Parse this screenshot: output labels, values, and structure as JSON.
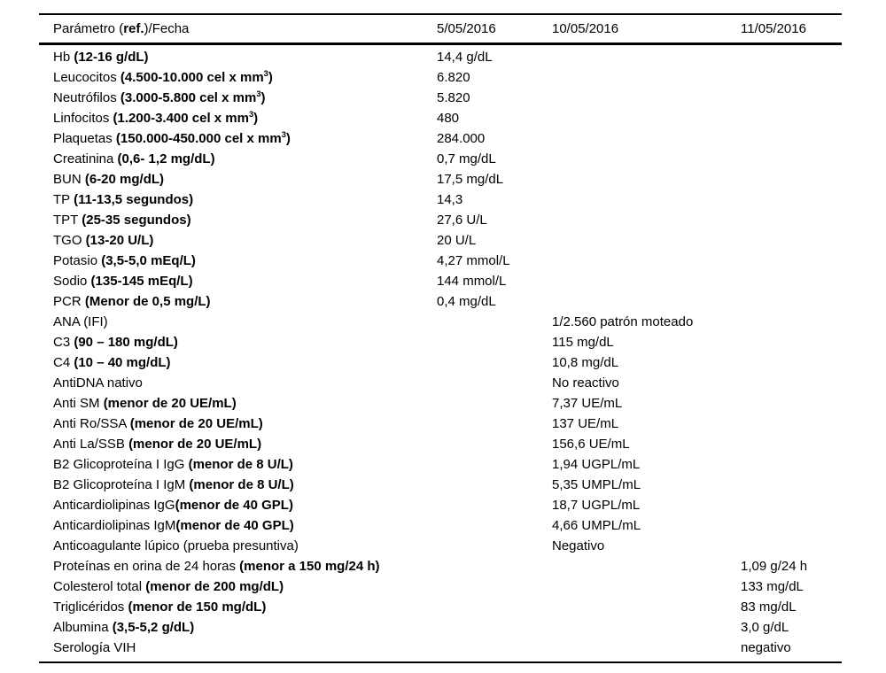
{
  "table": {
    "header": {
      "param_prefix": "Parámetro (",
      "param_bold": "ref.",
      "param_suffix": ")/Fecha",
      "dates": [
        "5/05/2016",
        "10/05/2016",
        "11/05/2016"
      ]
    },
    "rows": [
      {
        "param": "Hb ",
        "ref": "(12-16 g/dL)",
        "bold": true,
        "v1": "14,4 g/dL",
        "v2": "",
        "v3": ""
      },
      {
        "param": "Leucocitos ",
        "ref": "(4.500-10.000 cel x mm",
        "sup": "3",
        "ref2": ")",
        "bold": true,
        "v1": "6.820",
        "v2": "",
        "v3": ""
      },
      {
        "param": "Neutrófilos ",
        "ref": "(3.000-5.800 cel x mm",
        "sup": "3",
        "ref2": ")",
        "bold": true,
        "v1": "5.820",
        "v2": "",
        "v3": ""
      },
      {
        "param": "Linfocitos ",
        "ref": "(1.200-3.400 cel x mm",
        "sup": "3",
        "ref2": ")",
        "bold": true,
        "v1": "480",
        "v2": "",
        "v3": ""
      },
      {
        "param": "Plaquetas ",
        "ref": "(150.000-450.000 cel x mm",
        "sup": "3",
        "ref2": ")",
        "bold": true,
        "v1": "284.000",
        "v2": "",
        "v3": ""
      },
      {
        "param": "Creatinina ",
        "ref": "(0,6- 1,2 mg/dL)",
        "bold": true,
        "v1": "0,7 mg/dL",
        "v2": "",
        "v3": ""
      },
      {
        "param": "BUN ",
        "ref": "(6-20 mg/dL)",
        "bold": true,
        "v1": "17,5 mg/dL",
        "v2": "",
        "v3": ""
      },
      {
        "param": "TP ",
        "ref": "(11-13,5 segundos)",
        "bold": true,
        "v1": "14,3",
        "v2": "",
        "v3": ""
      },
      {
        "param": "TPT ",
        "ref": "(25-35 segundos)",
        "bold": true,
        "v1": "27,6 U/L",
        "v2": "",
        "v3": ""
      },
      {
        "param": "TGO ",
        "ref": "(13-20 U/L)",
        "bold": true,
        "v1": "20 U/L",
        "v2": "",
        "v3": ""
      },
      {
        "param": "Potasio ",
        "ref": "(3,5-5,0 mEq/L)",
        "bold": true,
        "v1": "4,27 mmol/L",
        "v2": "",
        "v3": ""
      },
      {
        "param": "Sodio ",
        "ref": "(135-145 mEq/L)",
        "bold": true,
        "v1": "144 mmol/L",
        "v2": "",
        "v3": ""
      },
      {
        "param": "PCR ",
        "ref": "(Menor de 0,5 mg/L)",
        "bold": true,
        "v1": "0,4 mg/dL",
        "v2": "",
        "v3": ""
      },
      {
        "param": "ANA ",
        "ref": "(IFI)",
        "bold": false,
        "v1": "",
        "v2": "1/2.560 patrón moteado",
        "v3": ""
      },
      {
        "param": "C3 ",
        "ref": "(90 – 180 mg/dL)",
        "bold": true,
        "v1": "",
        "v2": "115 mg/dL",
        "v3": ""
      },
      {
        "param": "C4 ",
        "ref": "(10 – 40 mg/dL)",
        "bold": true,
        "v1": "",
        "v2": "10,8 mg/dL",
        "v3": ""
      },
      {
        "param": "AntiDNA nativo",
        "ref": "",
        "bold": false,
        "v1": "",
        "v2": "No reactivo",
        "v3": ""
      },
      {
        "param": "Anti SM ",
        "ref": "(menor de 20 UE/mL)",
        "bold": true,
        "v1": "",
        "v2": "7,37 UE/mL",
        "v3": ""
      },
      {
        "param": "Anti Ro/SSA ",
        "ref": "(menor de 20 UE/mL)",
        "bold": true,
        "v1": "",
        "v2": "137 UE/mL",
        "v3": ""
      },
      {
        "param": "Anti La/SSB ",
        "ref": "(menor de 20 UE/mL)",
        "bold": true,
        "v1": "",
        "v2": "156,6 UE/mL",
        "v3": ""
      },
      {
        "param": "B2 Glicoproteína I IgG ",
        "ref": "(menor de 8 U/L)",
        "bold": true,
        "v1": "",
        "v2": "1,94 UGPL/mL",
        "v3": ""
      },
      {
        "param": "B2 Glicoproteína I IgM ",
        "ref": "(menor de 8 U/L)",
        "bold": true,
        "v1": "",
        "v2": "5,35 UMPL/mL",
        "v3": ""
      },
      {
        "param": "Anticardiolipinas IgG",
        "ref": "(menor de 40 GPL)",
        "bold": true,
        "v1": "",
        "v2": "18,7 UGPL/mL",
        "v3": ""
      },
      {
        "param": "Anticardiolipinas IgM",
        "ref": "(menor de 40 GPL)",
        "bold": true,
        "v1": "",
        "v2": "4,66 UMPL/mL",
        "v3": ""
      },
      {
        "param": "Anticoagulante lúpico ",
        "ref": "(prueba presuntiva)",
        "bold": false,
        "v1": "",
        "v2": "Negativo",
        "v3": ""
      },
      {
        "param": "Proteínas en orina de 24 horas ",
        "ref": "(menor a 150 mg/24 h)",
        "bold": true,
        "v1": "",
        "v2": "",
        "v3": "1,09 g/24 h"
      },
      {
        "param": "Colesterol total ",
        "ref": "(menor de 200 mg/dL)",
        "bold": true,
        "v1": "",
        "v2": "",
        "v3": "133 mg/dL"
      },
      {
        "param": "Triglicéridos ",
        "ref": "(menor de 150 mg/dL)",
        "bold": true,
        "v1": "",
        "v2": "",
        "v3": "83 mg/dL"
      },
      {
        "param": "Albumina ",
        "ref": "(3,5-5,2 g/dL)",
        "bold": true,
        "v1": "",
        "v2": "",
        "v3": "3,0 g/dL"
      },
      {
        "param": "Serología VIH",
        "ref": "",
        "bold": false,
        "v1": "",
        "v2": "",
        "v3": "negativo"
      }
    ]
  }
}
